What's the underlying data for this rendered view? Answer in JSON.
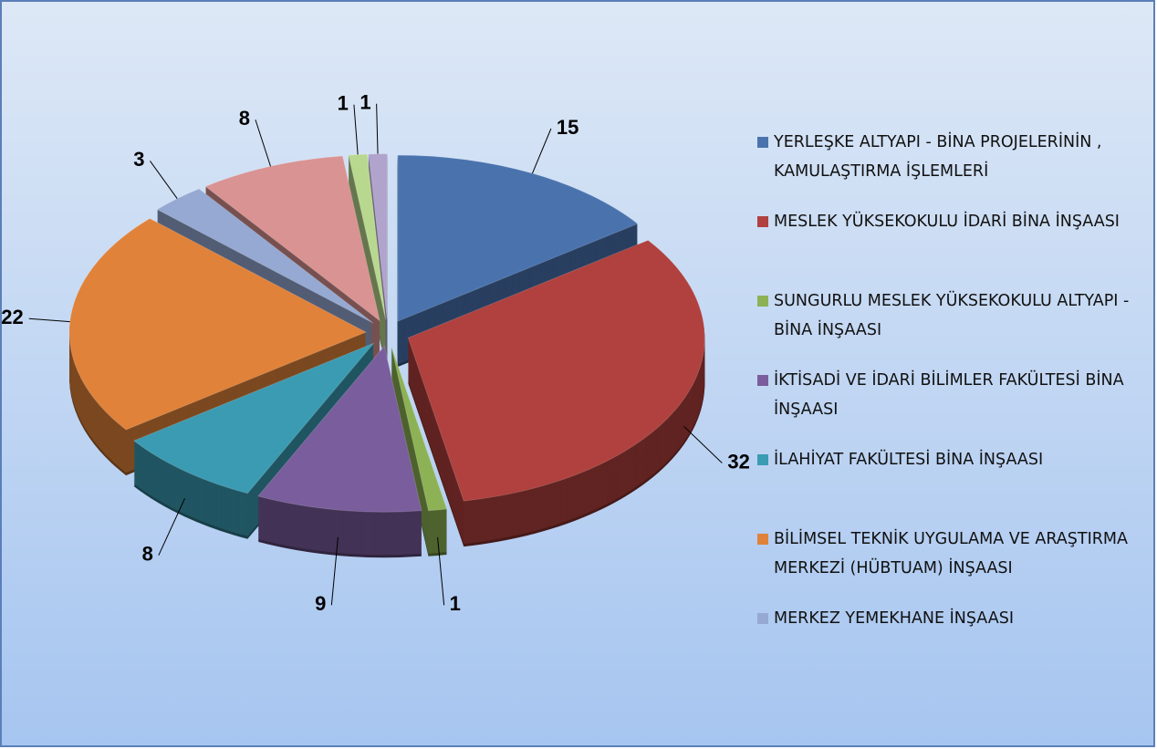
{
  "chart_data": {
    "type": "pie",
    "categories": [
      "YERLEŞKE ALTYAPI - BİNA PROJELERİNİN , KAMULAŞTIRMA İŞLEMLERİ",
      "MESLEK YÜKSEKOKULU İDARİ BİNA İNŞAASI",
      "SUNGURLU MESLEK YÜKSEKOKULU ALTYAPI - BİNA İNŞAASI",
      "İKTİSADİ VE İDARİ BİLİMLER FAKÜLTESİ BİNA İNŞAASI",
      "İLAHİYAT FAKÜLTESİ BİNA İNŞAASI",
      "BİLİMSEL TEKNİK UYGULAMA VE ARAŞTIRMA MERKEZİ (HÜBTUAM) İNŞAASI",
      "MERKEZ YEMEKHANE İNŞAASI",
      null,
      null,
      null
    ],
    "values": [
      15,
      32,
      1,
      9,
      8,
      22,
      3,
      8,
      1,
      1
    ],
    "colors": [
      "#4a73ae",
      "#b0413e",
      "#8db255",
      "#7a5d9c",
      "#3b9bb2",
      "#e0823a",
      "#95a9d2",
      "#d99392",
      "#b9d88f",
      "#b0a3cc"
    ],
    "legend": "right"
  }
}
